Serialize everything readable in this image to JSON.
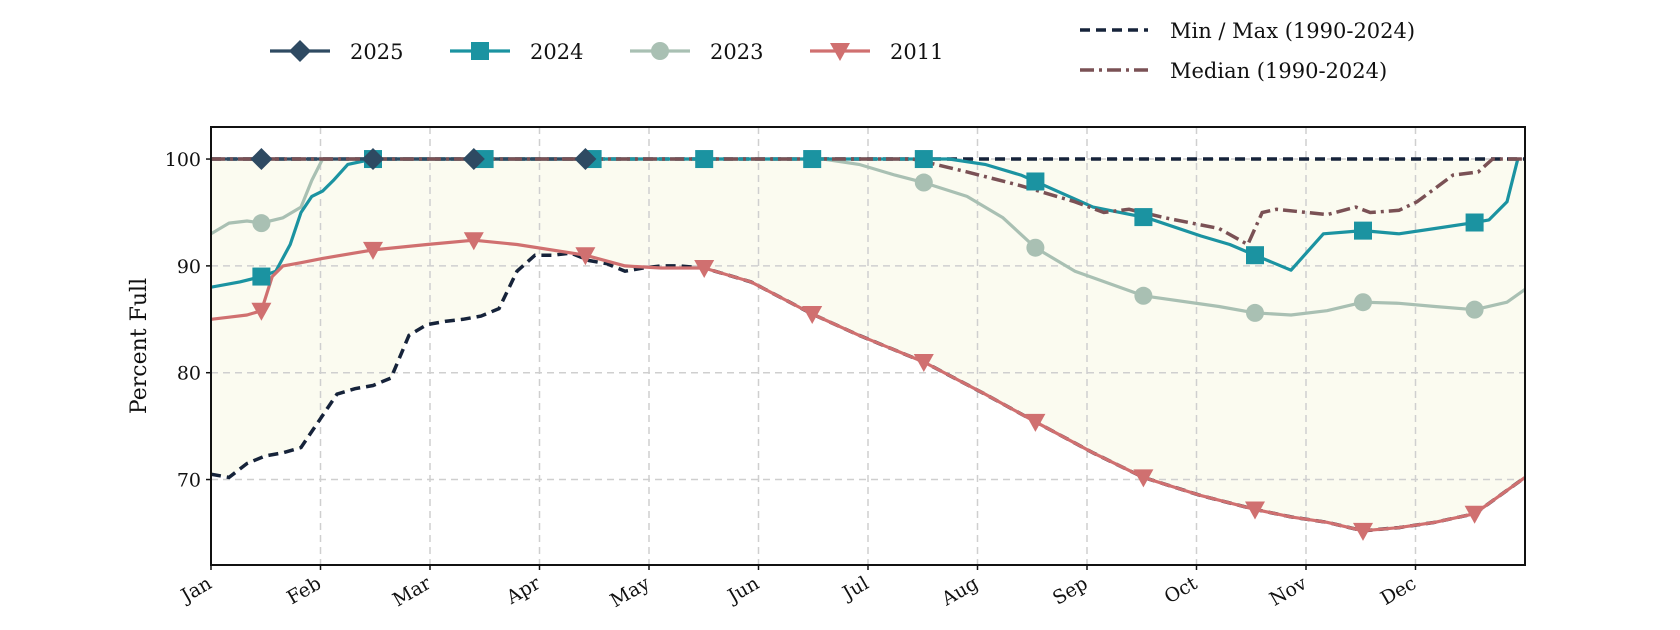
{
  "chart_data": {
    "type": "line",
    "ylabel": "Percent Full",
    "xlabel": "",
    "title": "",
    "x_ticks": [
      "Jan",
      "Feb",
      "Mar",
      "Apr",
      "May",
      "Jun",
      "Jul",
      "Aug",
      "Sep",
      "Oct",
      "Nov",
      "Dec"
    ],
    "y_ticks": [
      70,
      80,
      90,
      100
    ],
    "xlim": [
      0,
      365
    ],
    "ylim": [
      62,
      103
    ],
    "grid": true,
    "legend_position": "top",
    "band_color": "#fbfbf0",
    "min_max_label": "Min / Max (1990-2024)",
    "median_label": "Median (1990-2024)",
    "series": [
      {
        "name": "2025",
        "color": "#2e4a62",
        "marker": "diamond",
        "x": [
          0,
          30,
          60,
          90,
          105
        ],
        "y": [
          100,
          100,
          100,
          100,
          100
        ],
        "marker_x": [
          14,
          45,
          73,
          104
        ]
      },
      {
        "name": "2024",
        "color": "#1b93a1",
        "marker": "square",
        "x": [
          0,
          8,
          14,
          18,
          22,
          25,
          28,
          31,
          34,
          38,
          45,
          60,
          100,
          150,
          190,
          205,
          215,
          225,
          235,
          245,
          260,
          275,
          283,
          290,
          300,
          309,
          320,
          330,
          340,
          350,
          355,
          360,
          363
        ],
        "y": [
          88,
          88.5,
          89,
          89.5,
          92,
          95,
          96.5,
          97,
          98,
          99.5,
          100,
          100,
          100,
          100,
          100,
          100,
          99.5,
          98.5,
          97,
          95.5,
          94.5,
          92.8,
          92,
          91,
          89.6,
          93,
          93.3,
          93,
          93.5,
          94,
          94.3,
          96,
          100
        ],
        "marker_x": [
          14,
          45,
          76,
          106,
          137,
          167,
          198,
          229,
          259,
          290,
          320,
          351
        ]
      },
      {
        "name": "2023",
        "color": "#a9c0b3",
        "marker": "circle",
        "x": [
          0,
          5,
          10,
          14,
          20,
          25,
          28,
          31,
          60,
          120,
          170,
          180,
          190,
          198,
          210,
          220,
          229,
          240,
          259,
          280,
          290,
          300,
          310,
          320,
          330,
          340,
          351,
          360,
          365
        ],
        "y": [
          93,
          94,
          94.2,
          94,
          94.5,
          95.5,
          98,
          100,
          100,
          100,
          100,
          99.5,
          98.5,
          97.8,
          96.5,
          94.5,
          91.7,
          89.5,
          87.2,
          86.2,
          85.6,
          85.4,
          85.8,
          86.6,
          86.5,
          86.2,
          85.9,
          86.6,
          87.8
        ],
        "marker_x": [
          14,
          198,
          229,
          259,
          290,
          320,
          351
        ]
      },
      {
        "name": "2011",
        "color": "#d07070",
        "marker": "triangle-down",
        "x": [
          0,
          5,
          10,
          14,
          17,
          20,
          25,
          31,
          45,
          60,
          73,
          85,
          104,
          115,
          125,
          137,
          150,
          167,
          180,
          198,
          215,
          229,
          245,
          259,
          275,
          290,
          300,
          310,
          320,
          330,
          340,
          351,
          358,
          365
        ],
        "y": [
          85,
          85.2,
          85.4,
          85.8,
          89,
          90,
          90.3,
          90.7,
          91.5,
          92,
          92.4,
          92,
          91,
          90,
          89.8,
          89.8,
          88.5,
          85.5,
          83.5,
          81,
          78,
          75.4,
          72.5,
          70.2,
          68.5,
          67.2,
          66.5,
          66,
          65.2,
          65.5,
          66,
          66.8,
          68.5,
          70.2
        ],
        "marker_x": [
          14,
          45,
          73,
          104,
          137,
          167,
          198,
          229,
          259,
          290,
          320,
          351
        ]
      }
    ],
    "max_line": {
      "x": [
        0,
        365
      ],
      "y": [
        100,
        100
      ]
    },
    "min_line": {
      "x": [
        0,
        5,
        10,
        15,
        20,
        25,
        30,
        35,
        40,
        45,
        50,
        55,
        60,
        65,
        70,
        75,
        80,
        85,
        90,
        95,
        100,
        105,
        110,
        115,
        120,
        125,
        130,
        137,
        150,
        167,
        180,
        198,
        215,
        229,
        245,
        259,
        275,
        290,
        300,
        310,
        320,
        330,
        340,
        351,
        358,
        365
      ],
      "y": [
        70.5,
        70.2,
        71.5,
        72.2,
        72.5,
        73,
        75.5,
        78,
        78.5,
        78.8,
        79.5,
        83.5,
        84.5,
        84.8,
        85,
        85.3,
        86,
        89.5,
        91,
        91,
        91.2,
        90.5,
        90.2,
        89.5,
        89.8,
        90,
        90,
        89.8,
        88.5,
        85.5,
        83.5,
        81,
        78,
        75.4,
        72.5,
        70.2,
        68.5,
        67.2,
        66.5,
        66,
        65.2,
        65.5,
        66,
        66.8,
        68.5,
        70.2
      ]
    },
    "median_line": {
      "x": [
        0,
        180,
        195,
        200,
        210,
        225,
        240,
        248,
        255,
        265,
        280,
        288,
        292,
        296,
        310,
        318,
        322,
        330,
        335,
        345,
        352,
        356,
        365
      ],
      "y": [
        100,
        100,
        100,
        99.6,
        98.8,
        97.5,
        96,
        95,
        95.3,
        94.5,
        93.5,
        92,
        95,
        95.3,
        94.8,
        95.5,
        95,
        95.2,
        96,
        98.5,
        98.8,
        100,
        100
      ]
    }
  }
}
